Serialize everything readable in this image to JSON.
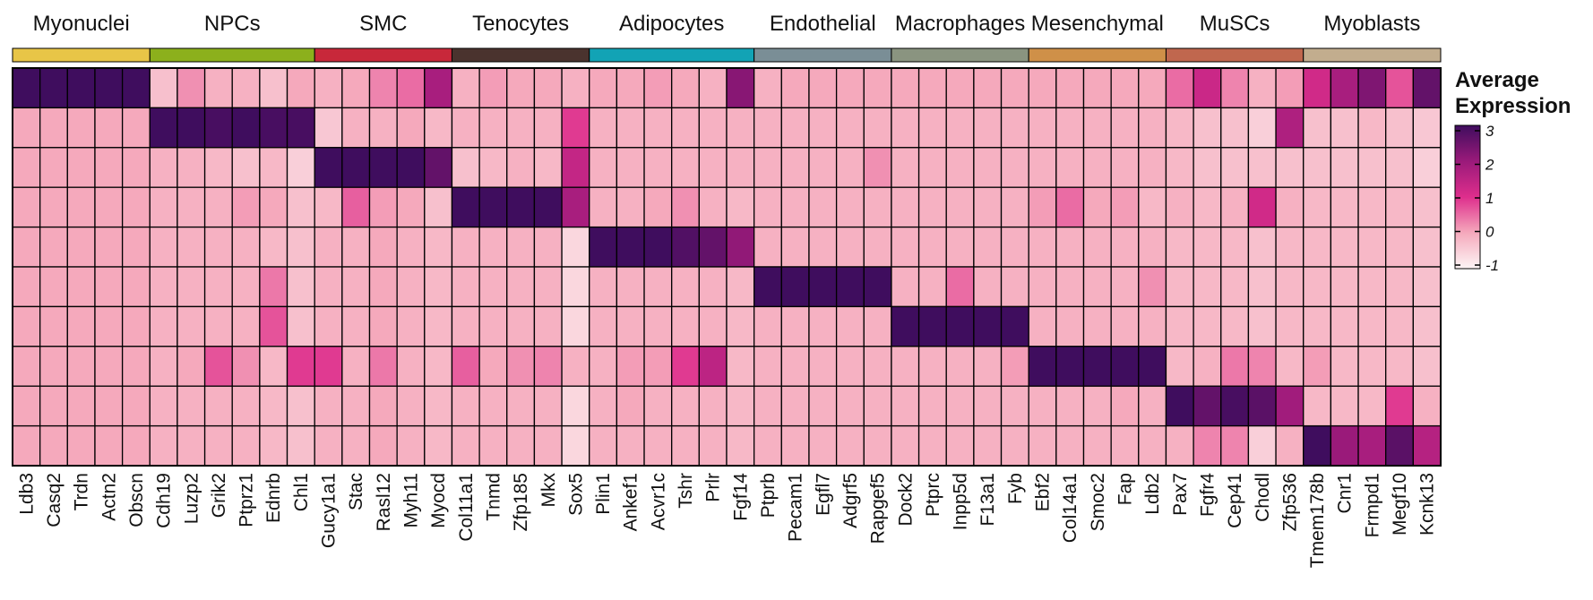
{
  "chart_data": {
    "type": "heatmap",
    "title": "",
    "xlabel": "",
    "ylabel": "",
    "groups": [
      {
        "name": "Myonuclei",
        "color": "#E8C547",
        "genes": [
          "Ldb3",
          "Casq2",
          "Trdn",
          "Actn2",
          "Obscn"
        ]
      },
      {
        "name": "NPCs",
        "color": "#8CB01C",
        "genes": [
          "Cdh19",
          "Luzp2",
          "Grik2",
          "Ptprz1",
          "Ednrb",
          "Chl1"
        ]
      },
      {
        "name": "SMC",
        "color": "#C8283A",
        "genes": [
          "Gucy1a1",
          "Stac",
          "Rasl12",
          "Myh11",
          "Myocd"
        ]
      },
      {
        "name": "Tenocytes",
        "color": "#4A332E",
        "genes": [
          "Col11a1",
          "Tnmd",
          "Zfp185",
          "Mkx",
          "Sox5"
        ]
      },
      {
        "name": "Adipocytes",
        "color": "#12A3B5",
        "genes": [
          "Plin1",
          "Ankef1",
          "Acvr1c",
          "Tshr",
          "Prlr",
          "Fgf14"
        ]
      },
      {
        "name": "Endothelial",
        "color": "#7A8E96",
        "genes": [
          "Ptprb",
          "Pecam1",
          "Egfl7",
          "Adgrf5",
          "Rapgef5"
        ]
      },
      {
        "name": "Macrophages",
        "color": "#8A9480",
        "genes": [
          "Dock2",
          "Ptprc",
          "Inpp5d",
          "F13a1",
          "Fyb"
        ]
      },
      {
        "name": "Mesenchymal",
        "color": "#CF9048",
        "genes": [
          "Ebf2",
          "Col14a1",
          "Smoc2",
          "Fap",
          "Ldb2"
        ]
      },
      {
        "name": "MuSCs",
        "color": "#C0674E",
        "genes": [
          "Pax7",
          "Fgfr4",
          "Cep41",
          "Chodl",
          "Zfp536"
        ]
      },
      {
        "name": "Myoblasts",
        "color": "#C2AD8E",
        "genes": [
          "Tmem178b",
          "Cnr1",
          "Frmpd1",
          "Megf10",
          "Kcnk13"
        ]
      }
    ],
    "values": [
      [
        3.0,
        3.0,
        3.0,
        3.0,
        3.0,
        -0.3,
        0.2,
        -0.1,
        -0.1,
        -0.3,
        0.0,
        -0.1,
        0.0,
        0.3,
        0.5,
        1.8,
        -0.1,
        0.1,
        0.0,
        0.0,
        -0.1,
        0.0,
        0.0,
        0.1,
        0.0,
        -0.1,
        2.2,
        -0.1,
        0.0,
        0.0,
        0.0,
        0.0,
        0.0,
        0.0,
        0.0,
        0.0,
        0.0,
        0.0,
        0.0,
        0.0,
        0.0,
        0.0,
        0.5,
        1.3,
        0.3,
        -0.1,
        0.1,
        1.2,
        1.8,
        2.3,
        0.7,
        2.6
      ],
      [
        0.0,
        0.0,
        0.0,
        0.0,
        0.0,
        3.0,
        3.0,
        2.9,
        3.0,
        2.9,
        2.9,
        -0.4,
        -0.1,
        -0.1,
        0.0,
        -0.2,
        -0.1,
        -0.1,
        -0.1,
        -0.1,
        0.9,
        -0.1,
        -0.1,
        -0.1,
        -0.1,
        -0.1,
        -0.1,
        -0.1,
        -0.1,
        -0.1,
        -0.1,
        -0.1,
        -0.1,
        -0.1,
        -0.1,
        -0.1,
        -0.1,
        -0.1,
        -0.1,
        -0.1,
        -0.1,
        -0.1,
        -0.2,
        -0.3,
        -0.3,
        -0.5,
        1.7,
        -0.3,
        -0.3,
        -0.2,
        -0.3,
        -0.4
      ],
      [
        0.0,
        0.0,
        0.0,
        0.0,
        0.0,
        -0.1,
        -0.1,
        -0.2,
        -0.3,
        -0.2,
        -0.5,
        3.0,
        3.0,
        3.0,
        3.0,
        2.6,
        -0.3,
        -0.2,
        -0.1,
        -0.2,
        1.4,
        -0.1,
        -0.1,
        -0.1,
        -0.1,
        -0.1,
        -0.1,
        -0.1,
        -0.1,
        -0.1,
        -0.1,
        0.2,
        -0.1,
        -0.1,
        -0.1,
        -0.1,
        -0.1,
        -0.1,
        -0.1,
        -0.1,
        -0.1,
        -0.1,
        -0.2,
        -0.3,
        -0.3,
        -0.3,
        -0.3,
        -0.3,
        -0.3,
        -0.3,
        -0.3,
        -0.5
      ],
      [
        0.0,
        0.0,
        0.0,
        0.0,
        0.0,
        -0.1,
        -0.1,
        -0.1,
        0.1,
        0.0,
        -0.3,
        -0.2,
        0.6,
        0.1,
        0.0,
        -0.3,
        3.0,
        3.0,
        3.0,
        3.0,
        1.8,
        -0.1,
        -0.1,
        0.0,
        0.2,
        -0.1,
        -0.2,
        -0.1,
        -0.1,
        -0.1,
        -0.1,
        -0.1,
        -0.1,
        -0.1,
        -0.1,
        -0.1,
        -0.1,
        0.1,
        0.5,
        0.0,
        0.1,
        -0.2,
        -0.1,
        -0.2,
        -0.1,
        1.2,
        -0.1,
        -0.2,
        -0.2,
        -0.2,
        -0.2,
        -0.3
      ],
      [
        0.0,
        0.0,
        0.0,
        0.0,
        0.0,
        -0.1,
        -0.1,
        -0.1,
        -0.1,
        -0.2,
        -0.3,
        -0.1,
        -0.1,
        0.0,
        -0.1,
        -0.2,
        -0.1,
        -0.1,
        -0.1,
        -0.1,
        -0.6,
        3.0,
        3.0,
        3.0,
        2.8,
        2.6,
        2.1,
        -0.1,
        -0.1,
        -0.1,
        -0.1,
        -0.1,
        -0.1,
        -0.1,
        -0.1,
        -0.1,
        -0.1,
        -0.1,
        -0.1,
        -0.1,
        -0.1,
        -0.1,
        -0.2,
        -0.2,
        -0.2,
        -0.3,
        -0.2,
        -0.2,
        -0.2,
        -0.2,
        -0.2,
        -0.3
      ],
      [
        0.0,
        0.0,
        0.0,
        0.0,
        0.0,
        -0.1,
        -0.1,
        -0.1,
        -0.1,
        0.4,
        -0.3,
        -0.1,
        -0.1,
        0.0,
        -0.1,
        -0.2,
        -0.1,
        -0.1,
        -0.1,
        -0.1,
        -0.6,
        -0.1,
        -0.1,
        -0.1,
        -0.1,
        -0.1,
        -0.2,
        3.0,
        3.0,
        3.0,
        3.0,
        3.0,
        -0.1,
        -0.1,
        0.5,
        -0.1,
        -0.1,
        -0.1,
        -0.1,
        -0.1,
        -0.1,
        0.2,
        -0.2,
        -0.2,
        -0.2,
        -0.3,
        -0.2,
        -0.2,
        -0.2,
        -0.2,
        -0.2,
        -0.3
      ],
      [
        0.0,
        0.0,
        0.0,
        0.0,
        0.0,
        -0.1,
        -0.1,
        -0.1,
        -0.1,
        0.7,
        -0.3,
        -0.1,
        -0.1,
        0.0,
        -0.1,
        -0.2,
        -0.1,
        -0.1,
        -0.1,
        -0.1,
        -0.6,
        -0.1,
        -0.1,
        -0.1,
        -0.1,
        -0.1,
        -0.2,
        -0.1,
        -0.1,
        -0.1,
        -0.1,
        -0.1,
        3.0,
        3.0,
        3.0,
        3.0,
        3.0,
        -0.1,
        -0.1,
        -0.1,
        -0.1,
        -0.1,
        -0.2,
        -0.2,
        -0.2,
        -0.3,
        -0.2,
        -0.2,
        -0.2,
        -0.2,
        -0.2,
        -0.3
      ],
      [
        0.0,
        0.0,
        0.0,
        0.0,
        0.0,
        -0.1,
        0.0,
        0.7,
        0.2,
        -0.2,
        0.9,
        0.9,
        -0.1,
        0.4,
        -0.1,
        -0.2,
        0.6,
        0.0,
        0.2,
        0.3,
        -0.1,
        -0.1,
        0.1,
        0.1,
        0.9,
        1.5,
        -0.2,
        -0.1,
        -0.1,
        -0.1,
        -0.1,
        -0.1,
        -0.1,
        -0.1,
        -0.1,
        -0.1,
        0.1,
        3.0,
        3.0,
        3.0,
        3.0,
        3.0,
        -0.2,
        -0.1,
        0.4,
        0.3,
        -0.2,
        0.1,
        -0.2,
        -0.2,
        -0.2,
        -0.3
      ],
      [
        0.0,
        0.0,
        0.0,
        0.0,
        0.0,
        -0.1,
        -0.1,
        -0.1,
        -0.1,
        -0.2,
        -0.3,
        -0.1,
        -0.1,
        0.0,
        -0.1,
        -0.2,
        -0.1,
        -0.1,
        -0.1,
        -0.1,
        -0.6,
        -0.1,
        0.0,
        -0.1,
        -0.1,
        -0.1,
        -0.2,
        -0.1,
        -0.1,
        -0.1,
        -0.1,
        -0.1,
        -0.1,
        -0.1,
        -0.1,
        -0.1,
        -0.1,
        -0.1,
        -0.1,
        -0.1,
        0.0,
        -0.1,
        3.0,
        2.6,
        2.9,
        2.7,
        1.9,
        -0.2,
        -0.2,
        -0.2,
        0.9,
        -0.1
      ],
      [
        0.0,
        0.0,
        0.0,
        0.0,
        0.0,
        -0.1,
        -0.1,
        -0.1,
        -0.1,
        -0.2,
        -0.3,
        -0.1,
        -0.1,
        0.0,
        -0.1,
        -0.2,
        -0.1,
        -0.1,
        -0.1,
        -0.1,
        -0.6,
        -0.1,
        -0.1,
        -0.1,
        -0.1,
        -0.1,
        -0.2,
        -0.1,
        -0.1,
        -0.1,
        -0.1,
        -0.1,
        -0.1,
        -0.1,
        -0.1,
        -0.1,
        -0.1,
        -0.1,
        -0.1,
        -0.1,
        -0.1,
        -0.1,
        -0.1,
        0.3,
        0.3,
        -0.5,
        -0.1,
        3.0,
        2.0,
        1.8,
        2.7,
        1.6
      ]
    ],
    "legend": {
      "title_line1": "Average",
      "title_line2": "Expression",
      "ticks": [
        "3",
        "2",
        "1",
        "0",
        "-1"
      ],
      "range": [
        -1,
        3
      ],
      "placement": "right",
      "color_stops": [
        "#FDF5F5",
        "#F5A9BC",
        "#DE2E8C",
        "#9A1A7A",
        "#3F0D5E"
      ]
    },
    "grid": true
  }
}
